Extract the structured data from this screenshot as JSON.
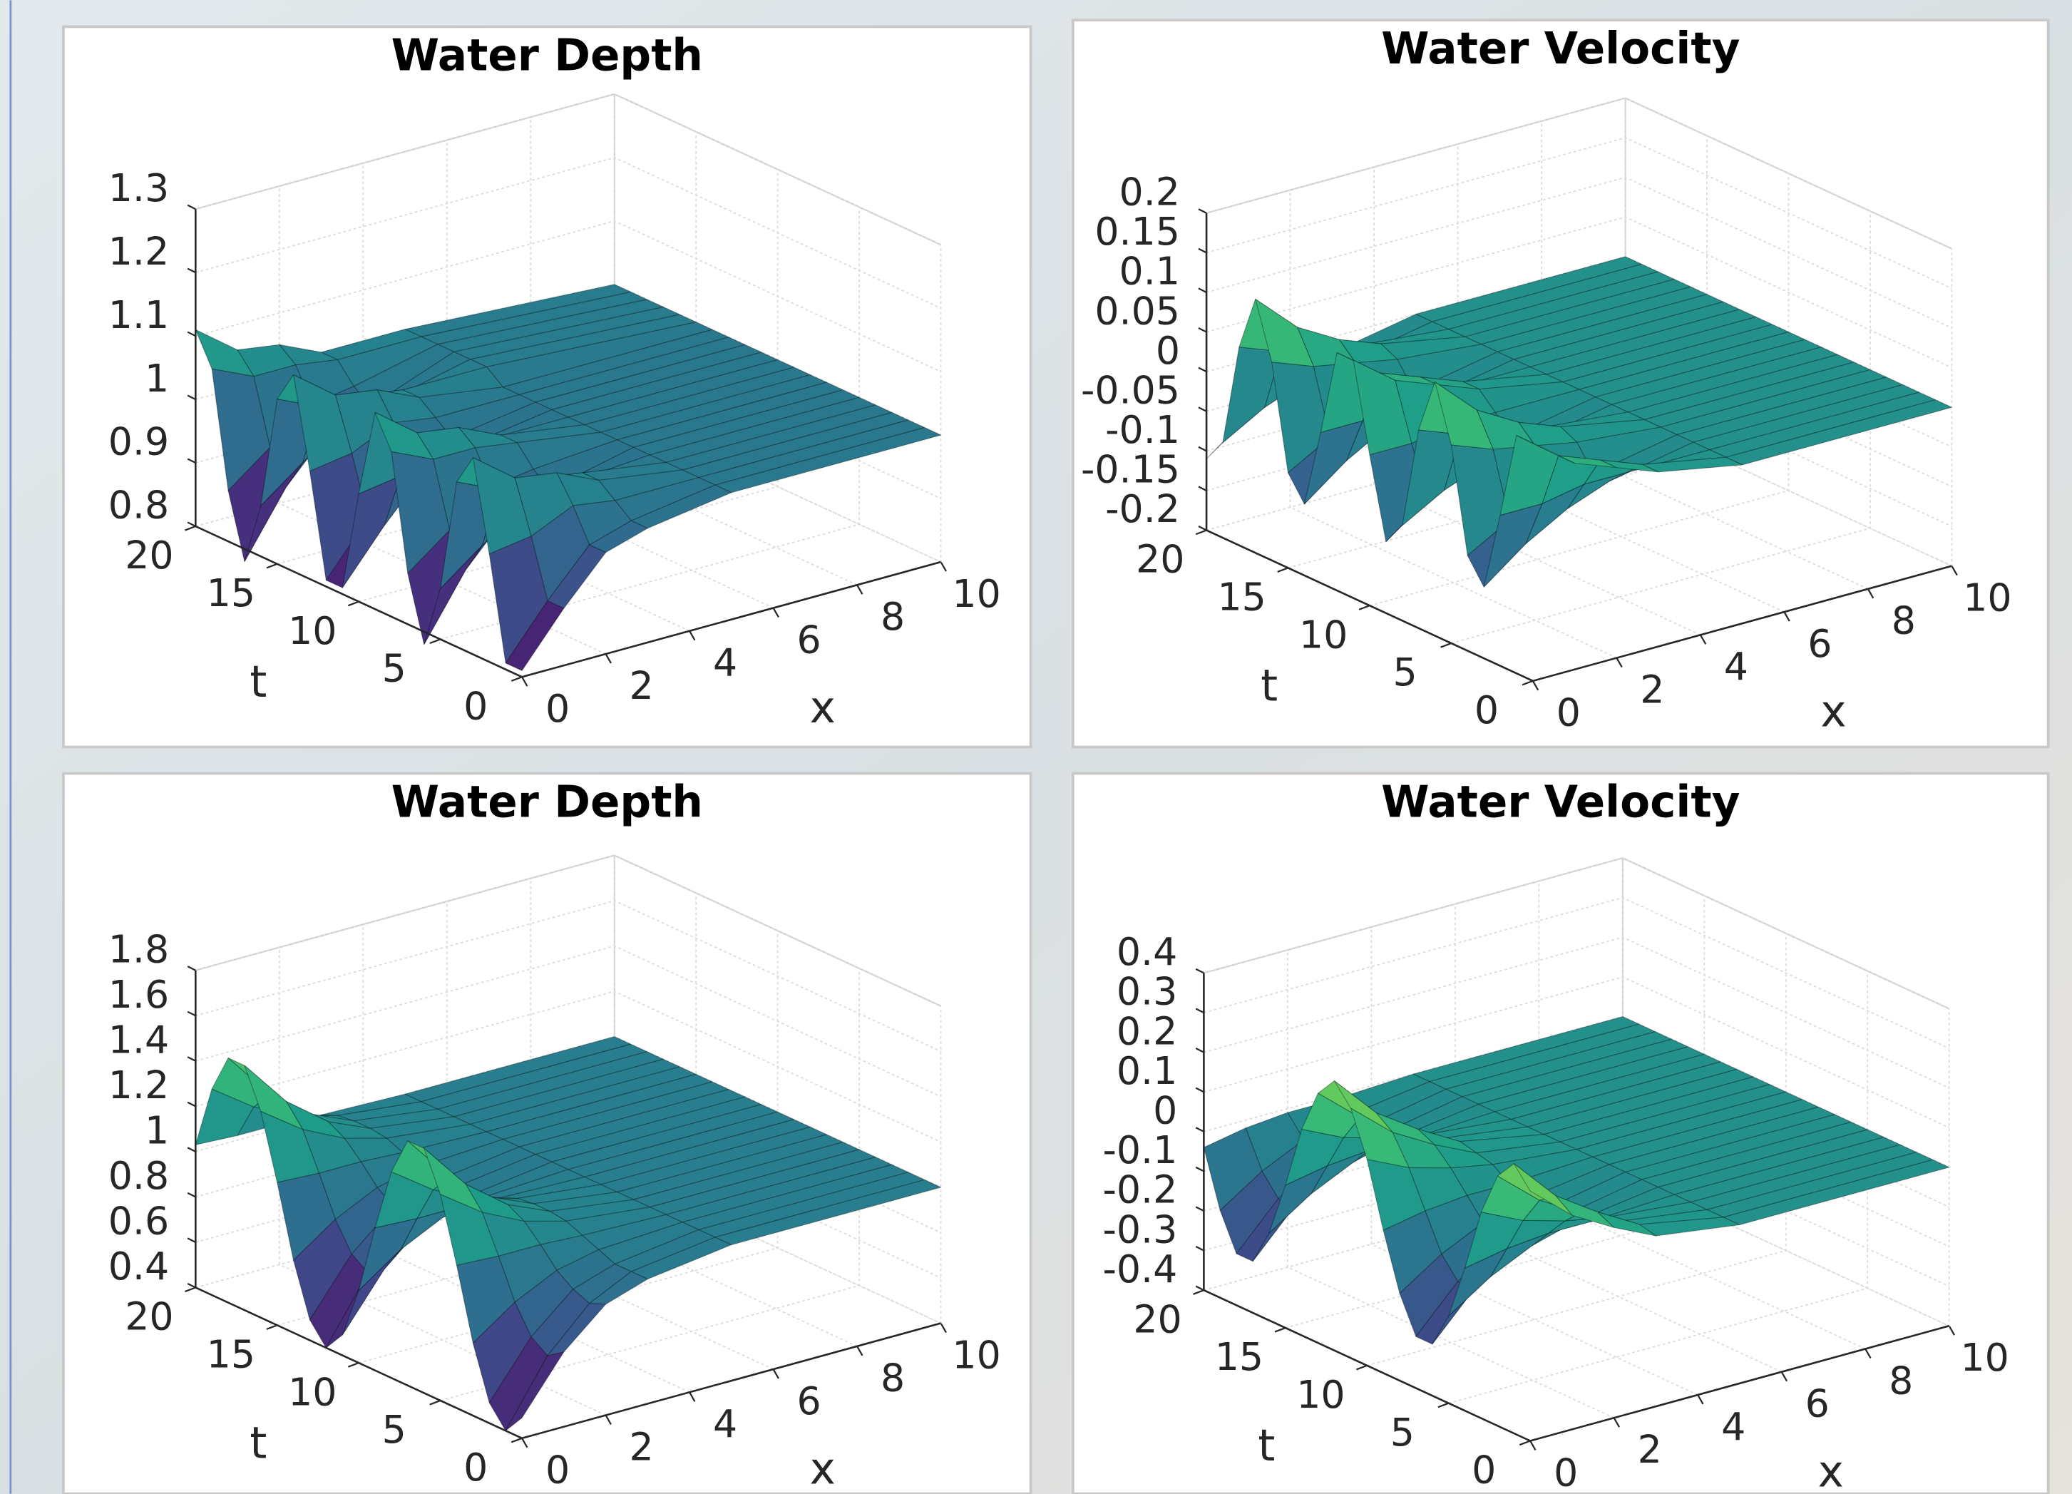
{
  "chart_data": [
    {
      "type": "surface",
      "title": "Water Depth",
      "xlabel": "x",
      "tlabel": "t",
      "colormap": "viridis",
      "grid": true,
      "xlim": [
        0,
        10
      ],
      "tlim": [
        0,
        20
      ],
      "zlim": [
        0.8,
        1.3
      ],
      "xticks": [
        0,
        2,
        4,
        6,
        8,
        10
      ],
      "tticks": [
        0,
        5,
        10,
        15,
        20
      ],
      "zticks": [
        0.8,
        0.9,
        1,
        1.1,
        1.2,
        1.3
      ],
      "x": [
        0,
        1,
        2,
        3,
        5,
        10
      ],
      "t": [
        0,
        1,
        2,
        3,
        4,
        5,
        6,
        7,
        8,
        9,
        10,
        11,
        12,
        13,
        14,
        15,
        16,
        17,
        18,
        19,
        20
      ],
      "z": [
        [
          0.81,
          0.81,
          0.97,
          1.11,
          1.06,
          0.88,
          0.78,
          0.88,
          1.06,
          1.11,
          0.97,
          0.81,
          0.81,
          0.97,
          1.11,
          1.06,
          0.88,
          0.78,
          0.88,
          1.06,
          1.11
        ],
        [
          0.89,
          0.89,
          0.98,
          1.06,
          1.03,
          0.93,
          0.88,
          0.93,
          1.03,
          1.06,
          0.98,
          0.89,
          0.89,
          0.98,
          1.06,
          1.03,
          0.93,
          0.88,
          0.93,
          1.03,
          1.06
        ],
        [
          0.96,
          0.96,
          1.01,
          1.05,
          1.03,
          0.98,
          0.95,
          0.98,
          1.03,
          1.05,
          1.01,
          0.96,
          0.96,
          1.01,
          1.05,
          1.03,
          0.98,
          0.95,
          0.98,
          1.03,
          1.05
        ],
        [
          0.98,
          0.98,
          1.0,
          1.02,
          1.02,
          0.99,
          0.97,
          0.99,
          1.02,
          1.02,
          1.0,
          0.98,
          0.98,
          1.0,
          1.02,
          1.02,
          0.99,
          0.97,
          0.99,
          1.02,
          1.02
        ],
        [
          1.0,
          1.0,
          1.0,
          1.0,
          1.0,
          1.0,
          1.0,
          1.0,
          1.0,
          1.0,
          1.0,
          1.0,
          1.0,
          1.0,
          1.0,
          1.02,
          1.02,
          1.02,
          1.02,
          1.02,
          1.02
        ],
        [
          1.0,
          1.0,
          1.0,
          1.0,
          1.0,
          1.0,
          1.0,
          1.0,
          1.0,
          1.0,
          1.0,
          1.0,
          1.0,
          1.0,
          1.0,
          1.0,
          1.0,
          1.0,
          1.0,
          1.0,
          1.0
        ]
      ]
    },
    {
      "type": "surface",
      "title": "Water Velocity",
      "xlabel": "x",
      "tlabel": "t",
      "colormap": "viridis",
      "grid": true,
      "xlim": [
        0,
        10
      ],
      "tlim": [
        0,
        20
      ],
      "zlim": [
        -0.2,
        0.2
      ],
      "xticks": [
        0,
        2,
        4,
        6,
        8,
        10
      ],
      "tticks": [
        0,
        5,
        10,
        15,
        20
      ],
      "zticks": [
        -0.2,
        -0.15,
        -0.1,
        -0.05,
        0,
        0.05,
        0.1,
        0.15,
        0.2
      ],
      "x": [
        0,
        1,
        2,
        3,
        5,
        10
      ],
      "t": [
        0,
        1,
        2,
        3,
        4,
        5,
        6,
        7,
        8,
        9,
        10,
        11,
        12,
        13,
        14,
        15,
        16,
        17,
        18,
        19,
        20
      ],
      "z": [
        [
          0.1,
          0.1,
          -0.01,
          -0.11,
          -0.08,
          0.05,
          0.12,
          0.05,
          -0.08,
          -0.11,
          -0.01,
          0.1,
          0.1,
          -0.01,
          -0.11,
          -0.08,
          0.05,
          0.12,
          0.05,
          -0.08,
          -0.11
        ],
        [
          0.06,
          0.06,
          -0.01,
          -0.07,
          -0.05,
          0.03,
          0.07,
          0.03,
          -0.05,
          -0.07,
          -0.01,
          0.06,
          0.06,
          -0.01,
          -0.07,
          -0.05,
          0.03,
          0.07,
          0.03,
          -0.05,
          -0.07
        ],
        [
          0.04,
          0.04,
          0,
          -0.04,
          -0.03,
          0.02,
          0.04,
          0.02,
          -0.03,
          -0.04,
          0,
          0.04,
          0.04,
          0,
          -0.04,
          -0.03,
          0.02,
          0.04,
          0.02,
          -0.03,
          -0.04
        ],
        [
          0.02,
          0.02,
          0,
          -0.02,
          -0.02,
          0.01,
          0.02,
          0.01,
          -0.02,
          -0.02,
          0,
          0.02,
          0.02,
          0,
          -0.02,
          -0.02,
          0.01,
          0.02,
          0.01,
          -0.02,
          -0.02
        ],
        [
          0,
          0,
          0,
          0,
          0,
          0,
          0,
          0,
          0,
          0,
          0,
          0,
          0,
          0,
          0,
          0,
          0,
          0,
          0,
          0,
          0
        ],
        [
          0,
          0,
          0,
          0,
          0,
          0,
          0,
          0,
          0,
          0,
          0,
          0,
          0,
          0,
          0,
          0,
          0,
          0,
          0,
          0,
          0
        ]
      ]
    },
    {
      "type": "surface",
      "title": "Water Depth",
      "xlabel": "x",
      "tlabel": "t",
      "colormap": "viridis",
      "grid": true,
      "xlim": [
        0,
        10
      ],
      "tlim": [
        0,
        20
      ],
      "zlim": [
        0.4,
        1.8
      ],
      "xticks": [
        0,
        2,
        4,
        6,
        8,
        10
      ],
      "tticks": [
        0,
        5,
        10,
        15,
        20
      ],
      "zticks": [
        0.4,
        0.6,
        0.8,
        1,
        1.2,
        1.4,
        1.6,
        1.8
      ],
      "x": [
        0,
        1,
        2,
        3,
        5,
        10
      ],
      "t": [
        0,
        1,
        2,
        3,
        4,
        5,
        6,
        7,
        8,
        9,
        10,
        11,
        12,
        13,
        14,
        15,
        16,
        17,
        18,
        19,
        20
      ],
      "z": [
        [
          0.49,
          0.4,
          0.49,
          0.72,
          1.03,
          1.31,
          1.48,
          1.48,
          1.31,
          1.03,
          0.72,
          0.49,
          0.4,
          0.49,
          0.72,
          1.03,
          1.31,
          1.48,
          1.48,
          1.31,
          1.03
        ],
        [
          0.73,
          0.68,
          0.73,
          0.85,
          1.02,
          1.18,
          1.27,
          1.27,
          1.18,
          1.02,
          0.85,
          0.73,
          0.68,
          0.73,
          0.85,
          1.02,
          1.18,
          1.27,
          1.27,
          1.18,
          1.02
        ],
        [
          0.89,
          0.86,
          0.89,
          0.94,
          1.02,
          1.09,
          1.13,
          1.13,
          1.09,
          1.02,
          0.94,
          0.89,
          0.86,
          0.89,
          0.94,
          1.02,
          1.09,
          1.13,
          1.13,
          1.09,
          1.02
        ],
        [
          0.95,
          0.95,
          0.95,
          0.98,
          1.01,
          1.04,
          1.05,
          1.05,
          1.04,
          1.01,
          0.98,
          0.95,
          0.95,
          0.95,
          0.98,
          1.01,
          1.04,
          1.05,
          1.05,
          1.04,
          1.01
        ],
        [
          1,
          1,
          1,
          1,
          1,
          1,
          1,
          1,
          1,
          1,
          1,
          1,
          1,
          1,
          1,
          1,
          1,
          1,
          1,
          1,
          1
        ],
        [
          1,
          1,
          1,
          1,
          1,
          1,
          1,
          1,
          1,
          1,
          1,
          1,
          1,
          1,
          1,
          1,
          1,
          1,
          1,
          1,
          1
        ]
      ]
    },
    {
      "type": "surface",
      "title": "Water Velocity",
      "xlabel": "x",
      "tlabel": "t",
      "colormap": "viridis",
      "grid": true,
      "xlim": [
        0,
        10
      ],
      "tlim": [
        0,
        20
      ],
      "zlim": [
        -0.4,
        0.4
      ],
      "xticks": [
        0,
        2,
        4,
        6,
        8,
        10
      ],
      "tticks": [
        0,
        5,
        10,
        15,
        20
      ],
      "zticks": [
        -0.4,
        -0.3,
        -0.2,
        -0.1,
        0,
        0.1,
        0.2,
        0.3,
        0.4
      ],
      "x": [
        0,
        1,
        2,
        3,
        5,
        10
      ],
      "t": [
        0,
        1,
        2,
        3,
        4,
        5,
        6,
        7,
        8,
        9,
        10,
        11,
        12,
        13,
        14,
        15,
        16,
        17,
        18,
        19,
        20
      ],
      "z": [
        [
          0.23,
          0.28,
          0.23,
          0.12,
          -0.04,
          -0.18,
          -0.27,
          -0.27,
          -0.18,
          -0.04,
          0.12,
          0.23,
          0.28,
          0.23,
          0.12,
          -0.04,
          -0.18,
          -0.27,
          -0.27,
          -0.18,
          -0.04
        ],
        [
          0.14,
          0.17,
          0.14,
          0.07,
          -0.02,
          -0.11,
          -0.16,
          -0.16,
          -0.11,
          -0.02,
          0.07,
          0.14,
          0.17,
          0.14,
          0.07,
          -0.02,
          -0.11,
          -0.16,
          -0.16,
          -0.11,
          -0.02
        ],
        [
          0.08,
          0.1,
          0.08,
          0.04,
          -0.01,
          -0.06,
          -0.09,
          -0.09,
          -0.06,
          -0.01,
          0.04,
          0.08,
          0.1,
          0.08,
          0.04,
          -0.01,
          -0.06,
          -0.09,
          -0.09,
          -0.06,
          -0.01
        ],
        [
          0.03,
          0.04,
          0.03,
          0.02,
          -0.01,
          -0.03,
          -0.04,
          -0.04,
          -0.03,
          -0.01,
          0.02,
          0.03,
          0.04,
          0.03,
          0.02,
          -0.01,
          -0.03,
          -0.04,
          -0.04,
          -0.03,
          -0.01
        ],
        [
          0,
          0,
          0,
          0,
          0,
          0,
          0,
          0,
          0,
          0,
          0,
          0,
          0,
          0,
          0,
          0,
          0,
          0,
          0,
          0,
          0
        ],
        [
          0,
          0,
          0,
          0,
          0,
          0,
          0,
          0,
          0,
          0,
          0,
          0,
          0,
          0,
          0,
          0,
          0,
          0,
          0,
          0,
          0
        ]
      ]
    }
  ]
}
